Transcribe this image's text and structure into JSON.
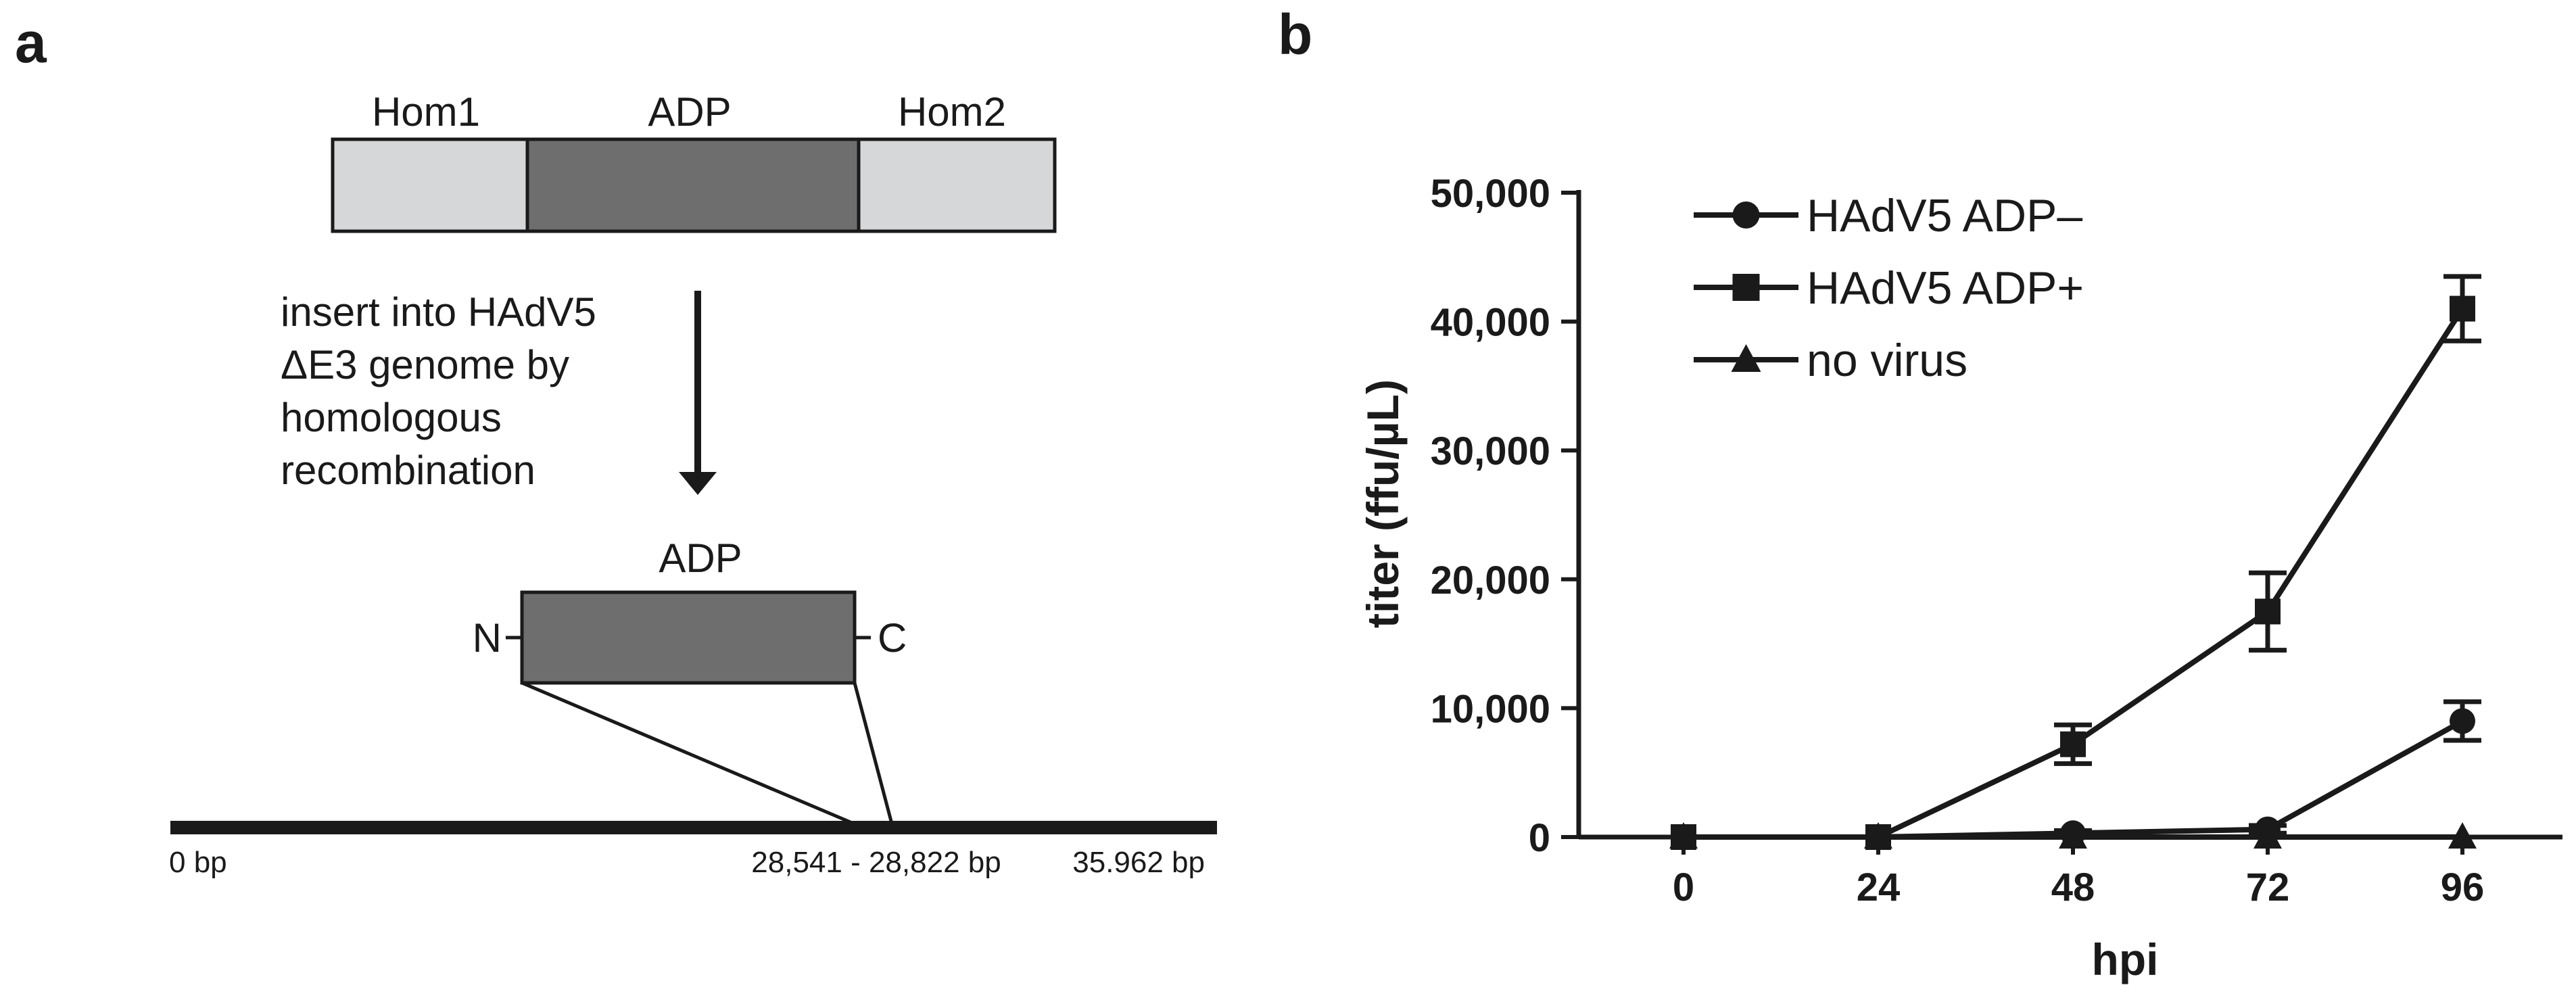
{
  "panel_a": {
    "label": "a",
    "construct": {
      "left": "Hom1",
      "middle": "ADP",
      "right": "Hom2"
    },
    "arrow_text": [
      "insert into HAdV5",
      "ΔE3 genome by",
      "homologous",
      "recombination"
    ],
    "protein": {
      "label": "ADP",
      "n_term": "N",
      "c_term": "C"
    },
    "genome": {
      "start": "0 bp",
      "site": "28,541 - 28,822 bp",
      "end": "35.962 bp"
    },
    "colors": {
      "homology": "#d6d7d9",
      "adp": "#6e6e6e",
      "line": "#1a1a1a"
    }
  },
  "panel_b": {
    "label": "b",
    "chart_data": {
      "type": "line",
      "xlabel": "hpi",
      "ylabel": "titer (ffu/µL)",
      "x": [
        0,
        24,
        48,
        72,
        96
      ],
      "x_tick_labels": [
        "0",
        "24",
        "48",
        "72",
        "96"
      ],
      "y_ticks": [
        0,
        10000,
        20000,
        30000,
        40000,
        50000
      ],
      "y_tick_labels": [
        "0",
        "10,000",
        "20,000",
        "30,000",
        "40,000",
        "50,000"
      ],
      "ylim": [
        0,
        50000
      ],
      "legend_position": "top-left",
      "series": [
        {
          "name": "HAdV5 ADP–",
          "marker": "circle",
          "values": [
            0,
            0,
            300,
            600,
            9000
          ],
          "errors": [
            0,
            0,
            200,
            300,
            1500
          ]
        },
        {
          "name": "HAdV5 ADP+",
          "marker": "square",
          "values": [
            0,
            0,
            7200,
            17500,
            41000
          ],
          "errors": [
            0,
            0,
            1500,
            3000,
            2500
          ]
        },
        {
          "name": "no virus",
          "marker": "triangle",
          "values": [
            0,
            0,
            0,
            0,
            0
          ],
          "errors": [
            0,
            0,
            0,
            0,
            0
          ]
        }
      ]
    }
  }
}
